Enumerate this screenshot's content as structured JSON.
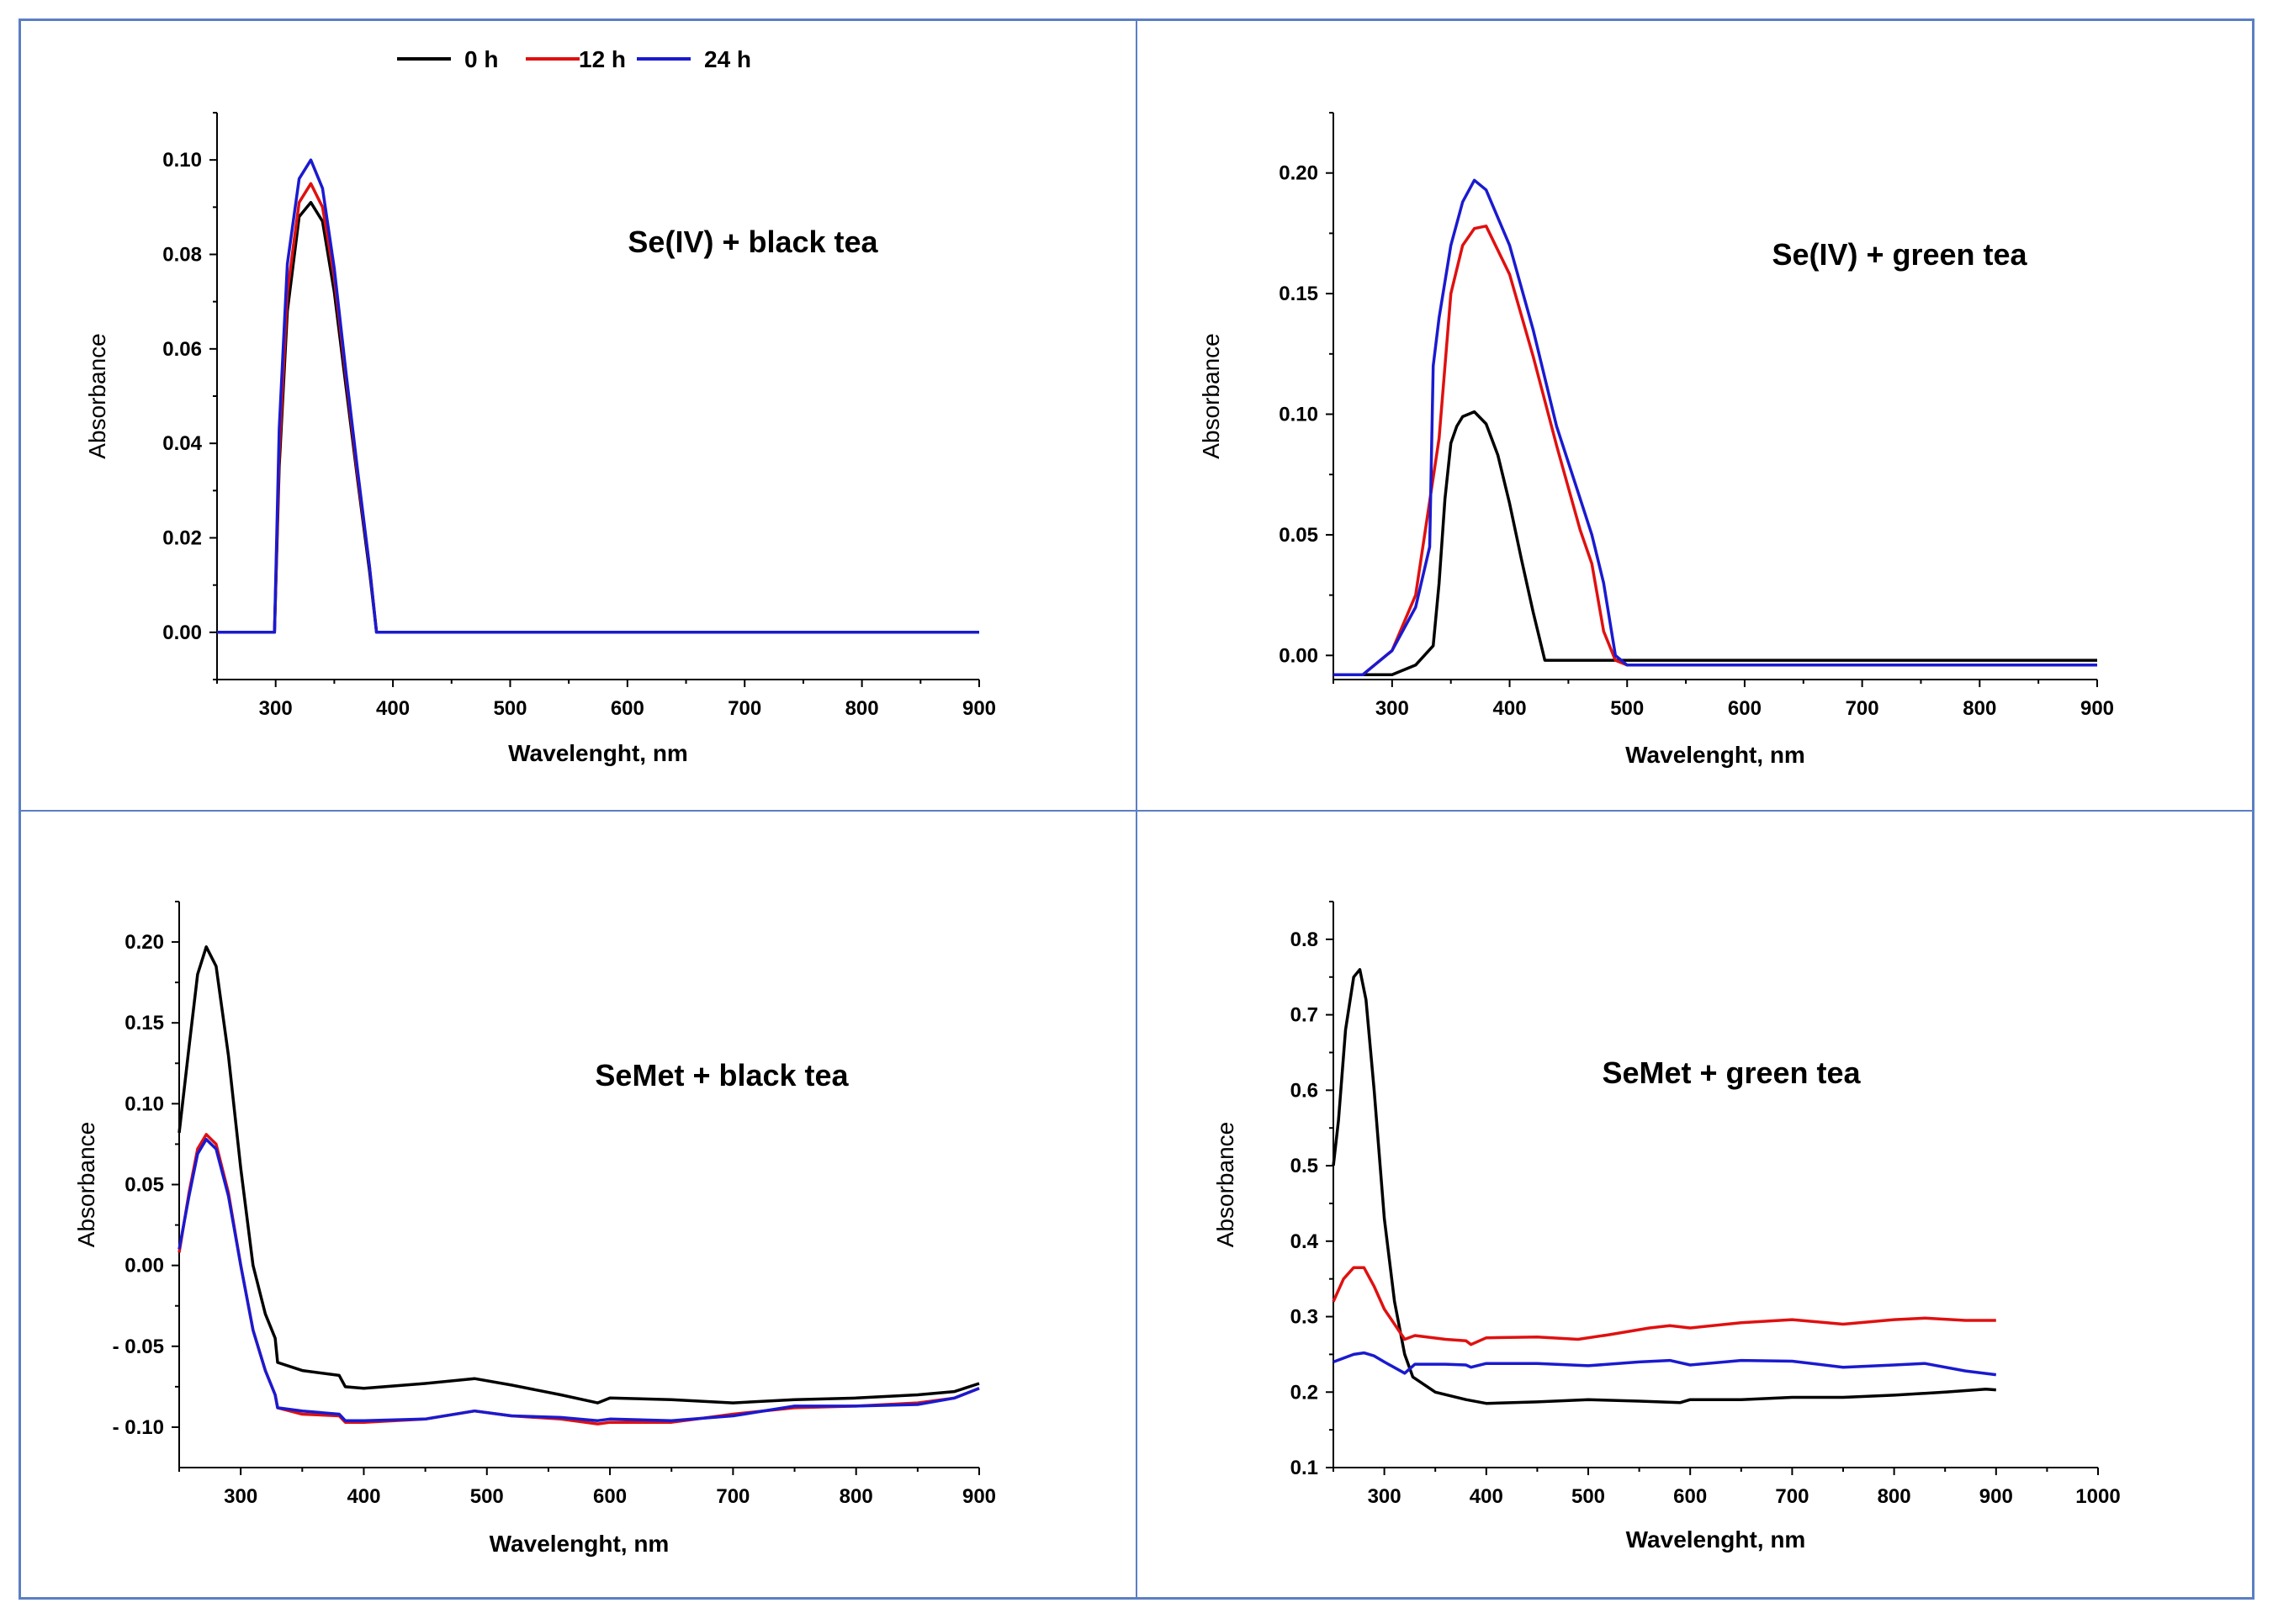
{
  "colors": {
    "0 h": "#000000",
    "12 h": "#e01010",
    "24 h": "#1a1ad0",
    "border": "#5b7fc4"
  },
  "legend": {
    "items": [
      "0 h",
      "12 h",
      "24 h"
    ]
  },
  "chart_data": [
    {
      "type": "line",
      "title": "Se(IV) + black tea",
      "xlabel": "Wavelenght, nm",
      "ylabel": "Absorbance",
      "xlim": [
        250,
        900
      ],
      "ylim": [
        -0.01,
        0.11
      ],
      "xticks": [
        300,
        400,
        500,
        600,
        700,
        800,
        900
      ],
      "yticks": [
        0.0,
        0.02,
        0.04,
        0.06,
        0.08,
        0.1
      ],
      "ytick_labels": [
        "0.00",
        "0.02",
        "0.04",
        "0.06",
        "0.08",
        "0.10"
      ],
      "series": [
        {
          "name": "0 h",
          "x": [
            250,
            299,
            303,
            310,
            320,
            330,
            340,
            350,
            360,
            370,
            380,
            386,
            390,
            900
          ],
          "y": [
            0,
            0,
            0.035,
            0.068,
            0.088,
            0.091,
            0.087,
            0.072,
            0.052,
            0.032,
            0.013,
            0,
            0,
            0
          ]
        },
        {
          "name": "12 h",
          "x": [
            250,
            299,
            303,
            310,
            320,
            330,
            340,
            350,
            360,
            370,
            380,
            386,
            390,
            900
          ],
          "y": [
            0,
            0,
            0.038,
            0.072,
            0.091,
            0.095,
            0.09,
            0.075,
            0.054,
            0.033,
            0.014,
            0,
            0,
            0
          ]
        },
        {
          "name": "24 h",
          "x": [
            250,
            299,
            303,
            310,
            320,
            330,
            340,
            350,
            360,
            370,
            380,
            386,
            390,
            900
          ],
          "y": [
            0,
            0,
            0.043,
            0.078,
            0.096,
            0.1,
            0.094,
            0.077,
            0.055,
            0.034,
            0.014,
            0,
            0,
            0
          ]
        }
      ]
    },
    {
      "type": "line",
      "title": "Se(IV) + green tea",
      "xlabel": "Wavelenght, nm",
      "ylabel": "Absorbance",
      "xlim": [
        250,
        900
      ],
      "ylim": [
        -0.01,
        0.225
      ],
      "xticks": [
        300,
        400,
        500,
        600,
        700,
        800,
        900
      ],
      "yticks": [
        0.0,
        0.05,
        0.1,
        0.15,
        0.2
      ],
      "ytick_labels": [
        "0.00",
        "0.05",
        "0.10",
        "0.15",
        "0.20"
      ],
      "series": [
        {
          "name": "0 h",
          "x": [
            250,
            300,
            320,
            335,
            340,
            345,
            350,
            355,
            360,
            370,
            380,
            390,
            400,
            410,
            420,
            430,
            440,
            900
          ],
          "y": [
            -0.008,
            -0.008,
            -0.004,
            0.004,
            0.03,
            0.065,
            0.088,
            0.095,
            0.099,
            0.101,
            0.096,
            0.083,
            0.063,
            0.04,
            0.018,
            -0.002,
            -0.002,
            -0.002
          ]
        },
        {
          "name": "12 h",
          "x": [
            250,
            275,
            300,
            320,
            340,
            350,
            360,
            370,
            380,
            400,
            420,
            440,
            460,
            470,
            480,
            490,
            500,
            900
          ],
          "y": [
            -0.008,
            -0.008,
            0.002,
            0.025,
            0.09,
            0.15,
            0.17,
            0.177,
            0.178,
            0.158,
            0.124,
            0.087,
            0.052,
            0.038,
            0.01,
            -0.002,
            -0.004,
            -0.004
          ]
        },
        {
          "name": "24 h",
          "x": [
            250,
            275,
            300,
            320,
            332,
            335,
            340,
            350,
            360,
            370,
            380,
            400,
            420,
            440,
            460,
            470,
            480,
            490,
            500,
            900
          ],
          "y": [
            -0.008,
            -0.008,
            0.002,
            0.02,
            0.045,
            0.12,
            0.14,
            0.17,
            0.188,
            0.197,
            0.193,
            0.17,
            0.135,
            0.095,
            0.065,
            0.05,
            0.03,
            0,
            -0.004,
            -0.004
          ]
        }
      ]
    },
    {
      "type": "line",
      "title": "SeMet + black tea",
      "xlabel": "Wavelenght, nm",
      "ylabel": "Absorbance",
      "xlim": [
        250,
        900
      ],
      "ylim": [
        -0.125,
        0.225
      ],
      "xticks": [
        300,
        400,
        500,
        600,
        700,
        800,
        900
      ],
      "yticks": [
        -0.1,
        -0.05,
        0.0,
        0.05,
        0.1,
        0.15,
        0.2
      ],
      "ytick_labels": [
        "- 0.10",
        "- 0.05",
        "0.00",
        "0.05",
        "0.10",
        "0.15",
        "0.20"
      ],
      "series": [
        {
          "name": "0 h",
          "x": [
            250,
            258,
            265,
            272,
            280,
            290,
            300,
            310,
            320,
            328,
            330,
            350,
            380,
            385,
            400,
            450,
            490,
            520,
            560,
            590,
            600,
            650,
            700,
            750,
            800,
            850,
            880,
            900
          ],
          "y": [
            0.082,
            0.135,
            0.18,
            0.197,
            0.185,
            0.13,
            0.06,
            0.0,
            -0.03,
            -0.045,
            -0.06,
            -0.065,
            -0.068,
            -0.075,
            -0.076,
            -0.073,
            -0.07,
            -0.074,
            -0.08,
            -0.085,
            -0.082,
            -0.083,
            -0.085,
            -0.083,
            -0.082,
            -0.08,
            -0.078,
            -0.073
          ]
        },
        {
          "name": "12 h",
          "x": [
            250,
            258,
            265,
            272,
            280,
            290,
            300,
            310,
            320,
            328,
            330,
            350,
            380,
            385,
            400,
            450,
            490,
            520,
            560,
            590,
            600,
            650,
            700,
            750,
            800,
            850,
            880,
            900
          ],
          "y": [
            0.008,
            0.045,
            0.072,
            0.081,
            0.075,
            0.045,
            0.0,
            -0.04,
            -0.065,
            -0.08,
            -0.088,
            -0.092,
            -0.093,
            -0.097,
            -0.097,
            -0.095,
            -0.09,
            -0.093,
            -0.095,
            -0.098,
            -0.097,
            -0.097,
            -0.092,
            -0.088,
            -0.087,
            -0.085,
            -0.082,
            -0.076
          ]
        },
        {
          "name": "24 h",
          "x": [
            250,
            258,
            265,
            272,
            280,
            290,
            300,
            310,
            320,
            328,
            330,
            350,
            380,
            385,
            400,
            450,
            490,
            520,
            560,
            590,
            600,
            650,
            700,
            750,
            800,
            850,
            880,
            900
          ],
          "y": [
            0.01,
            0.043,
            0.069,
            0.078,
            0.072,
            0.043,
            0.0,
            -0.04,
            -0.065,
            -0.08,
            -0.088,
            -0.09,
            -0.092,
            -0.096,
            -0.096,
            -0.095,
            -0.09,
            -0.093,
            -0.094,
            -0.096,
            -0.095,
            -0.096,
            -0.093,
            -0.087,
            -0.087,
            -0.086,
            -0.082,
            -0.076
          ]
        }
      ]
    },
    {
      "type": "line",
      "title": "SeMet + green tea",
      "xlabel": "Wavelenght, nm",
      "ylabel": "Absorbance",
      "xlim": [
        250,
        1000
      ],
      "ylim": [
        0.1,
        0.85
      ],
      "xticks": [
        300,
        400,
        500,
        600,
        700,
        800,
        900,
        1000
      ],
      "yticks": [
        0.1,
        0.2,
        0.3,
        0.4,
        0.5,
        0.6,
        0.7,
        0.8
      ],
      "ytick_labels": [
        "0.1",
        "0.2",
        "0.3",
        "0.4",
        "0.5",
        "0.6",
        "0.7",
        "0.8"
      ],
      "series": [
        {
          "name": "0 h",
          "x": [
            250,
            255,
            262,
            270,
            276,
            282,
            290,
            300,
            310,
            320,
            328,
            350,
            380,
            400,
            450,
            500,
            550,
            590,
            600,
            650,
            700,
            750,
            800,
            850,
            890,
            900
          ],
          "y": [
            0.5,
            0.56,
            0.68,
            0.75,
            0.76,
            0.72,
            0.6,
            0.43,
            0.32,
            0.25,
            0.22,
            0.2,
            0.19,
            0.185,
            0.187,
            0.19,
            0.188,
            0.186,
            0.19,
            0.19,
            0.193,
            0.193,
            0.196,
            0.2,
            0.204,
            0.203
          ]
        },
        {
          "name": "12 h",
          "x": [
            250,
            260,
            270,
            280,
            290,
            300,
            310,
            320,
            330,
            360,
            380,
            385,
            400,
            450,
            490,
            520,
            560,
            580,
            600,
            650,
            700,
            750,
            800,
            830,
            870,
            900
          ],
          "y": [
            0.32,
            0.35,
            0.365,
            0.365,
            0.34,
            0.31,
            0.29,
            0.27,
            0.275,
            0.27,
            0.268,
            0.263,
            0.272,
            0.273,
            0.27,
            0.276,
            0.285,
            0.288,
            0.285,
            0.292,
            0.296,
            0.29,
            0.296,
            0.298,
            0.295,
            0.295
          ]
        },
        {
          "name": "24 h",
          "x": [
            250,
            260,
            270,
            280,
            290,
            300,
            320,
            330,
            360,
            380,
            385,
            400,
            450,
            500,
            550,
            580,
            600,
            650,
            700,
            750,
            800,
            830,
            870,
            900
          ],
          "y": [
            0.24,
            0.245,
            0.25,
            0.252,
            0.248,
            0.24,
            0.225,
            0.237,
            0.237,
            0.236,
            0.233,
            0.238,
            0.238,
            0.235,
            0.24,
            0.242,
            0.236,
            0.242,
            0.241,
            0.233,
            0.236,
            0.238,
            0.228,
            0.223
          ]
        }
      ]
    }
  ]
}
